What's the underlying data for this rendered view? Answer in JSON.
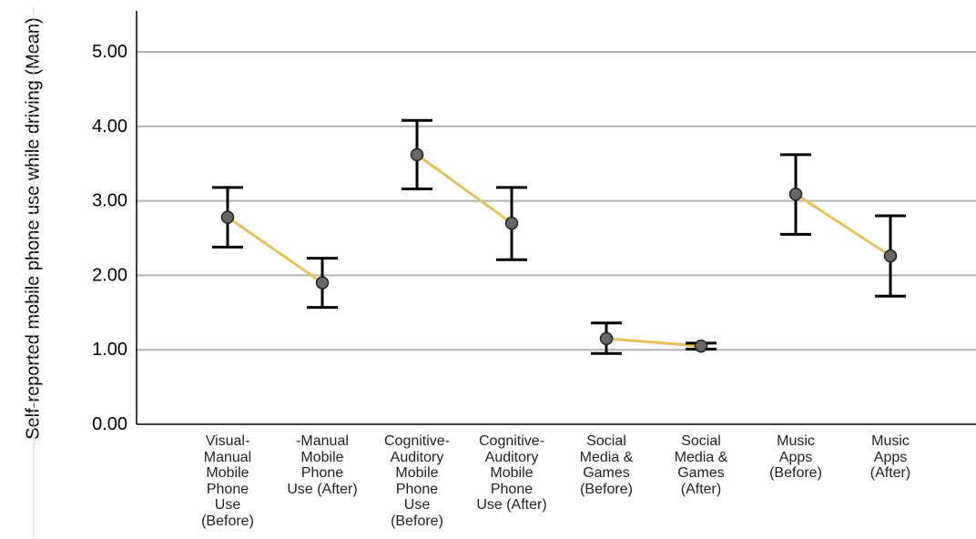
{
  "chart_data": {
    "type": "scatter",
    "ylabel": "Self-reported mobile phone use while\ndriving (Mean)",
    "xlabel": "",
    "ylim": [
      0,
      5
    ],
    "yticks": [
      "0.00",
      "1.00",
      "2.00",
      "3.00",
      "4.00",
      "5.00"
    ],
    "grid": true,
    "categories": [
      "Visual-\nManual\nMobile\nPhone\nUse\n(Before)",
      "-Manual\nMobile\nPhone\nUse (After)",
      "Cognitive-\nAuditory\nMobile\nPhone\nUse\n(Before)",
      "Cognitive-\nAuditory\nMobile\nPhone\nUse (After)",
      "Social\nMedia &\nGames\n(Before)",
      "Social\nMedia &\nGames\n(After)",
      "Music\nApps\n(Before)",
      "Music\nApps\n(After)"
    ],
    "values": [
      2.78,
      1.9,
      3.62,
      2.7,
      1.15,
      1.05,
      3.09,
      2.26
    ],
    "error_low": [
      2.38,
      1.57,
      3.16,
      2.21,
      0.95,
      1.01,
      2.55,
      1.72
    ],
    "error_high": [
      3.18,
      2.23,
      4.08,
      3.18,
      1.36,
      1.09,
      3.62,
      2.8
    ],
    "connectors": [
      [
        0,
        1
      ],
      [
        2,
        3
      ],
      [
        4,
        5
      ],
      [
        6,
        7
      ]
    ],
    "colors": {
      "connector": "#e3c35a",
      "grid": "#b4b4b4",
      "marker": "#666666",
      "error_bar": "#000000"
    }
  }
}
